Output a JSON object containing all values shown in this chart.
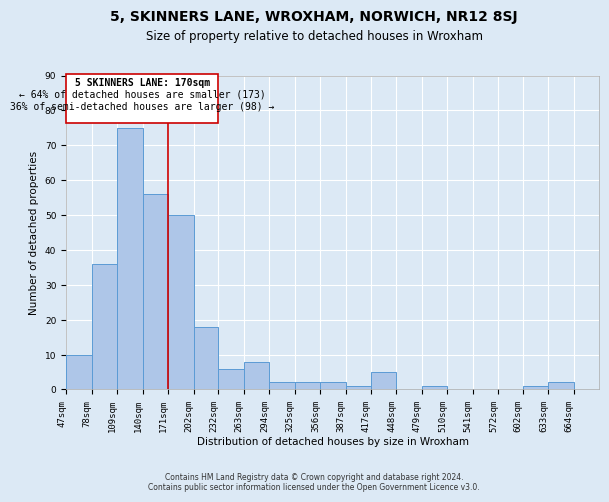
{
  "title": "5, SKINNERS LANE, WROXHAM, NORWICH, NR12 8SJ",
  "subtitle": "Size of property relative to detached houses in Wroxham",
  "xlabel": "Distribution of detached houses by size in Wroxham",
  "ylabel": "Number of detached properties",
  "footer1": "Contains HM Land Registry data © Crown copyright and database right 2024.",
  "footer2": "Contains public sector information licensed under the Open Government Licence v3.0.",
  "annotation_line1": "5 SKINNERS LANE: 170sqm",
  "annotation_line2": "← 64% of detached houses are smaller (173)",
  "annotation_line3": "36% of semi-detached houses are larger (98) →",
  "bin_edges": [
    47,
    78,
    109,
    140,
    171,
    202,
    232,
    263,
    294,
    325,
    356,
    387,
    417,
    448,
    479,
    510,
    541,
    572,
    602,
    633,
    664
  ],
  "bin_labels": [
    "47sqm",
    "78sqm",
    "109sqm",
    "140sqm",
    "171sqm",
    "202sqm",
    "232sqm",
    "263sqm",
    "294sqm",
    "325sqm",
    "356sqm",
    "387sqm",
    "417sqm",
    "448sqm",
    "479sqm",
    "510sqm",
    "541sqm",
    "572sqm",
    "602sqm",
    "633sqm",
    "664sqm"
  ],
  "counts": [
    10,
    36,
    75,
    56,
    50,
    18,
    6,
    8,
    2,
    2,
    2,
    1,
    5,
    0,
    1,
    0,
    0,
    0,
    1,
    2
  ],
  "bar_color": "#aec6e8",
  "bar_edge_color": "#5b9bd5",
  "vline_color": "#cc0000",
  "vline_x": 171,
  "ylim": [
    0,
    90
  ],
  "yticks": [
    0,
    10,
    20,
    30,
    40,
    50,
    60,
    70,
    80,
    90
  ],
  "background_color": "#dce9f5",
  "plot_bg_color": "#dce9f5",
  "grid_color": "#ffffff",
  "title_fontsize": 10,
  "subtitle_fontsize": 8.5,
  "axis_label_fontsize": 7.5,
  "tick_fontsize": 6.5,
  "annotation_fontsize": 7,
  "footer_fontsize": 5.5
}
